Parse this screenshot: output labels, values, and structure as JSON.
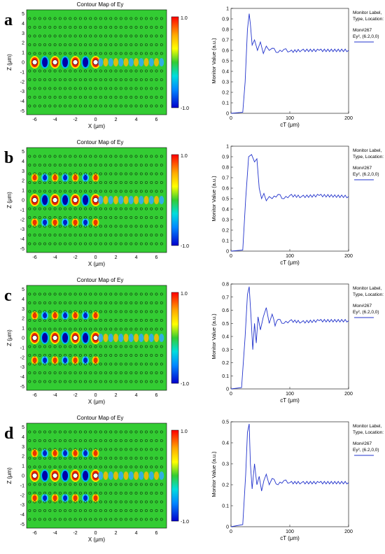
{
  "figure": {
    "panels": [
      {
        "label": "a",
        "contour_title": "Contour Map of Ey",
        "colorbar_max": "1.0",
        "colorbar_min": "-1.0",
        "x_ticks": [
          "-6",
          "-4",
          "-2",
          "0",
          "2",
          "4",
          "6"
        ],
        "z_ticks": [
          "5",
          "4",
          "3",
          "2",
          "1",
          "0",
          "-1",
          "-2",
          "-3",
          "-4",
          "-5"
        ],
        "x_axis_label": "X (μm)",
        "z_axis_label": "Z (μm)",
        "monitor_legend": [
          "Monitor Label,",
          "Type, Location:",
          "Mon#267",
          "Ey², (6.2,0,0)"
        ],
        "field_pattern": "waveguide-only",
        "chart_data": {
          "type": "line",
          "xlabel": "cT (μm)",
          "ylabel": "Monitor Value (a.u.)",
          "xlim": [
            0,
            200
          ],
          "ylim": [
            0,
            1.0
          ],
          "x_ticks": [
            "0",
            "100",
            "200"
          ],
          "y_ticks": [
            "0",
            "0.1",
            "0.2",
            "0.3",
            "0.4",
            "0.5",
            "0.6",
            "0.7",
            "0.8",
            "0.9",
            "1"
          ],
          "series": [
            {
              "name": "Ey², (6.2,0,0)",
              "x": [
                0,
                20,
                24,
                28,
                31,
                33,
                36,
                40,
                45,
                50,
                55,
                60,
                65,
                70,
                80,
                90,
                100,
                120,
                150,
                200
              ],
              "y": [
                0,
                0.01,
                0.3,
                0.8,
                0.95,
                0.85,
                0.65,
                0.7,
                0.6,
                0.68,
                0.57,
                0.64,
                0.6,
                0.62,
                0.58,
                0.61,
                0.59,
                0.6,
                0.6,
                0.6
              ]
            }
          ]
        }
      },
      {
        "label": "b",
        "contour_title": "Contour Map of Ey",
        "colorbar_max": "1.0",
        "colorbar_min": "-1.0",
        "x_ticks": [
          "-6",
          "-4",
          "-2",
          "0",
          "2",
          "4",
          "6"
        ],
        "z_ticks": [
          "5",
          "4",
          "3",
          "2",
          "1",
          "0",
          "-1",
          "-2",
          "-3",
          "-4",
          "-5"
        ],
        "x_axis_label": "X (μm)",
        "z_axis_label": "Z (μm)",
        "monitor_legend": [
          "Monitor Label,",
          "Type, Location:",
          "Mon#267",
          "Ey², (6.2,0,0)"
        ],
        "field_pattern": "three-rows",
        "chart_data": {
          "type": "line",
          "xlabel": "cT (μm)",
          "ylabel": "Monitor Value (a.u.)",
          "xlim": [
            0,
            200
          ],
          "ylim": [
            0,
            1.0
          ],
          "x_ticks": [
            "0",
            "100",
            "200"
          ],
          "y_ticks": [
            "0",
            "0.1",
            "0.2",
            "0.3",
            "0.4",
            "0.5",
            "0.6",
            "0.7",
            "0.8",
            "0.9",
            "1"
          ],
          "series": [
            {
              "name": "Ey², (6.2,0,0)",
              "x": [
                0,
                20,
                25,
                30,
                35,
                40,
                44,
                48,
                52,
                56,
                60,
                65,
                70,
                80,
                90,
                100,
                120,
                150,
                200
              ],
              "y": [
                0,
                0.01,
                0.5,
                0.9,
                0.92,
                0.85,
                0.88,
                0.6,
                0.5,
                0.55,
                0.48,
                0.52,
                0.5,
                0.54,
                0.5,
                0.53,
                0.52,
                0.53,
                0.52
              ]
            }
          ]
        }
      },
      {
        "label": "c",
        "contour_title": "Contour Map of Ey",
        "colorbar_max": "1.0",
        "colorbar_min": "-1.0",
        "x_ticks": [
          "-6",
          "-4",
          "-2",
          "0",
          "2",
          "4",
          "6"
        ],
        "z_ticks": [
          "5",
          "4",
          "3",
          "2",
          "1",
          "0",
          "-1",
          "-2",
          "-3",
          "-4",
          "-5"
        ],
        "x_axis_label": "X (μm)",
        "z_axis_label": "Z (μm)",
        "monitor_legend": [
          "Monitor Label,",
          "Type, Location:",
          "Mon#267",
          "Ey², (6.2,0,0)"
        ],
        "field_pattern": "three-rows",
        "chart_data": {
          "type": "line",
          "xlabel": "cT (μm)",
          "ylabel": "Monitor Value (a.u.)",
          "xlim": [
            0,
            200
          ],
          "ylim": [
            0,
            0.8
          ],
          "x_ticks": [
            "0",
            "100",
            "200"
          ],
          "y_ticks": [
            "0",
            "0.1",
            "0.2",
            "0.3",
            "0.4",
            "0.5",
            "0.6",
            "0.7",
            "0.8"
          ],
          "series": [
            {
              "name": "Ey², (6.2,0,0)",
              "x": [
                0,
                18,
                24,
                28,
                31,
                34,
                37,
                40,
                43,
                46,
                50,
                55,
                60,
                65,
                70,
                75,
                80,
                90,
                100,
                120,
                150,
                200
              ],
              "y": [
                0,
                0.01,
                0.4,
                0.72,
                0.78,
                0.55,
                0.3,
                0.5,
                0.35,
                0.55,
                0.45,
                0.55,
                0.62,
                0.5,
                0.57,
                0.48,
                0.53,
                0.5,
                0.52,
                0.51,
                0.52,
                0.52
              ]
            }
          ]
        }
      },
      {
        "label": "d",
        "contour_title": "Contour Map of Ey",
        "colorbar_max": "1.0",
        "colorbar_min": "-1.0",
        "x_ticks": [
          "-6",
          "-4",
          "-2",
          "0",
          "2",
          "4",
          "6"
        ],
        "z_ticks": [
          "5",
          "4",
          "3",
          "2",
          "1",
          "0",
          "-1",
          "-2",
          "-3",
          "-4",
          "-5"
        ],
        "x_axis_label": "X (μm)",
        "z_axis_label": "Z (μm)",
        "monitor_legend": [
          "Monitor Label,",
          "Type, Location:",
          "Mon#267",
          "Ey², (6.2,0,0)"
        ],
        "field_pattern": "three-rows",
        "chart_data": {
          "type": "line",
          "xlabel": "cT (μm)",
          "ylabel": "Monitor Value (a.u.)",
          "xlim": [
            0,
            200
          ],
          "ylim": [
            0,
            0.5
          ],
          "x_ticks": [
            "0",
            "100",
            "200"
          ],
          "y_ticks": [
            "0",
            "0.1",
            "0.2",
            "0.3",
            "0.4",
            "0.5"
          ],
          "series": [
            {
              "name": "Ey², (6.2,0,0)",
              "x": [
                0,
                20,
                25,
                28,
                31,
                33,
                36,
                40,
                44,
                48,
                52,
                56,
                60,
                65,
                70,
                80,
                90,
                100,
                120,
                150,
                200
              ],
              "y": [
                0,
                0.01,
                0.25,
                0.45,
                0.49,
                0.3,
                0.18,
                0.3,
                0.2,
                0.24,
                0.17,
                0.22,
                0.25,
                0.2,
                0.23,
                0.2,
                0.22,
                0.21,
                0.21,
                0.21,
                0.21
              ]
            }
          ]
        }
      }
    ]
  },
  "colors": {
    "field_background": "#33cc33",
    "line": "#2233cc",
    "text": "#000000"
  }
}
